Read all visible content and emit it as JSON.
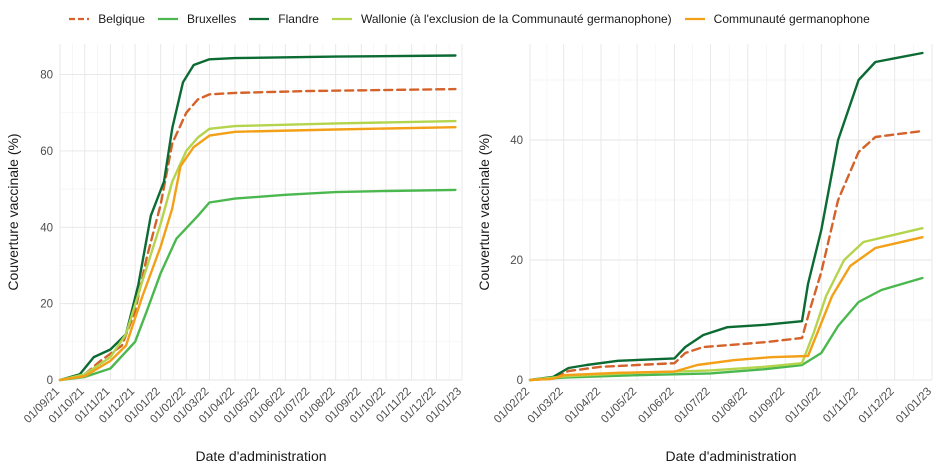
{
  "legend": [
    {
      "name": "Belgique",
      "color": "#d4622a",
      "dash": true
    },
    {
      "name": "Bruxelles",
      "color": "#4bb84f",
      "dash": false
    },
    {
      "name": "Flandre",
      "color": "#0b6b33",
      "dash": false
    },
    {
      "name": "Wallonie (à l'exclusion de la Communauté germanophone)",
      "color": "#b4d44c",
      "dash": false
    },
    {
      "name": "Communauté germanophone",
      "color": "#f3a018",
      "dash": false
    }
  ],
  "chart_data": [
    {
      "type": "line",
      "xlabel": "Date d'administration",
      "ylabel": "Couverture vaccinale (%)",
      "xlim": [
        "2021-09-01",
        "2023-01-01"
      ],
      "ylim": [
        0,
        88
      ],
      "grid": true,
      "legend_position": "top",
      "x_ticks": [
        "01/09/21",
        "01/10/21",
        "01/11/21",
        "01/12/21",
        "01/01/22",
        "01/02/22",
        "01/03/22",
        "01/04/22",
        "01/05/22",
        "01/06/22",
        "01/07/22",
        "01/08/22",
        "01/09/22",
        "01/10/22",
        "01/11/22",
        "01/12/22",
        "01/01/23"
      ],
      "y_ticks": [
        0,
        20,
        40,
        60,
        80
      ],
      "series": [
        {
          "name": "Belgique",
          "color": "#d4622a",
          "dash": true,
          "points": [
            [
              "2021-09-01",
              0
            ],
            [
              "2021-10-01",
              1.5
            ],
            [
              "2021-10-20",
              5
            ],
            [
              "2021-11-15",
              9
            ],
            [
              "2021-12-01",
              18
            ],
            [
              "2021-12-15",
              32
            ],
            [
              "2022-01-01",
              46
            ],
            [
              "2022-01-15",
              62
            ],
            [
              "2022-02-01",
              70
            ],
            [
              "2022-02-15",
              73.5
            ],
            [
              "2022-03-01",
              74.8
            ],
            [
              "2022-04-01",
              75.2
            ],
            [
              "2022-07-01",
              75.7
            ],
            [
              "2022-12-24",
              76.2
            ]
          ]
        },
        {
          "name": "Bruxelles",
          "color": "#4bb84f",
          "dash": false,
          "points": [
            [
              "2021-09-01",
              0
            ],
            [
              "2021-10-01",
              0.8
            ],
            [
              "2021-11-01",
              3
            ],
            [
              "2021-12-01",
              10
            ],
            [
              "2021-12-15",
              18
            ],
            [
              "2022-01-01",
              28
            ],
            [
              "2022-01-20",
              37
            ],
            [
              "2022-02-15",
              43
            ],
            [
              "2022-03-01",
              46.5
            ],
            [
              "2022-04-01",
              47.5
            ],
            [
              "2022-06-01",
              48.5
            ],
            [
              "2022-08-01",
              49.2
            ],
            [
              "2022-10-01",
              49.5
            ],
            [
              "2022-12-24",
              49.8
            ]
          ]
        },
        {
          "name": "Flandre",
          "color": "#0b6b33",
          "dash": false,
          "points": [
            [
              "2021-09-01",
              0
            ],
            [
              "2021-09-25",
              1.5
            ],
            [
              "2021-10-12",
              6
            ],
            [
              "2021-11-01",
              8
            ],
            [
              "2021-11-20",
              12
            ],
            [
              "2021-12-05",
              25
            ],
            [
              "2021-12-20",
              43
            ],
            [
              "2022-01-05",
              52
            ],
            [
              "2022-01-15",
              66
            ],
            [
              "2022-01-28",
              78
            ],
            [
              "2022-02-10",
              82.5
            ],
            [
              "2022-03-01",
              84
            ],
            [
              "2022-04-01",
              84.3
            ],
            [
              "2022-08-01",
              84.7
            ],
            [
              "2022-12-24",
              85
            ]
          ]
        },
        {
          "name": "Wallonie (à l'exclusion de la Communauté germanophone)",
          "color": "#b4d44c",
          "dash": false,
          "points": [
            [
              "2021-09-01",
              0
            ],
            [
              "2021-10-01",
              1.5
            ],
            [
              "2021-11-01",
              6
            ],
            [
              "2021-11-20",
              12
            ],
            [
              "2021-12-10",
              26
            ],
            [
              "2022-01-01",
              41
            ],
            [
              "2022-01-15",
              52
            ],
            [
              "2022-02-01",
              60
            ],
            [
              "2022-02-15",
              63.5
            ],
            [
              "2022-03-01",
              65.8
            ],
            [
              "2022-04-01",
              66.5
            ],
            [
              "2022-08-01",
              67.2
            ],
            [
              "2022-12-24",
              67.8
            ]
          ]
        },
        {
          "name": "Communauté germanophone",
          "color": "#f3a018",
          "dash": false,
          "points": [
            [
              "2021-09-01",
              0
            ],
            [
              "2021-10-01",
              1
            ],
            [
              "2021-11-01",
              5
            ],
            [
              "2021-11-20",
              9
            ],
            [
              "2021-12-10",
              22
            ],
            [
              "2022-01-01",
              35
            ],
            [
              "2022-01-15",
              45
            ],
            [
              "2022-01-25",
              56
            ],
            [
              "2022-02-10",
              61
            ],
            [
              "2022-03-01",
              64
            ],
            [
              "2022-04-01",
              65
            ],
            [
              "2022-08-01",
              65.6
            ],
            [
              "2022-12-24",
              66.2
            ]
          ]
        }
      ]
    },
    {
      "type": "line",
      "xlabel": "Date d'administration",
      "ylabel": "Couverture vaccinale (%)",
      "xlim": [
        "2022-02-01",
        "2023-01-01"
      ],
      "ylim": [
        0,
        56
      ],
      "grid": true,
      "legend_position": "top",
      "x_ticks": [
        "01/02/22",
        "01/03/22",
        "01/04/22",
        "01/05/22",
        "01/06/22",
        "01/07/22",
        "01/08/22",
        "01/09/22",
        "01/10/22",
        "01/11/22",
        "01/12/22",
        "01/01/23"
      ],
      "y_ticks": [
        0,
        20,
        40
      ],
      "series": [
        {
          "name": "Belgique",
          "color": "#d4622a",
          "dash": true,
          "points": [
            [
              "2022-02-01",
              0
            ],
            [
              "2022-02-20",
              0.2
            ],
            [
              "2022-03-05",
              1.5
            ],
            [
              "2022-04-01",
              2.2
            ],
            [
              "2022-05-01",
              2.5
            ],
            [
              "2022-06-01",
              2.8
            ],
            [
              "2022-06-10",
              4.5
            ],
            [
              "2022-06-25",
              5.5
            ],
            [
              "2022-07-15",
              5.8
            ],
            [
              "2022-08-15",
              6.3
            ],
            [
              "2022-09-15",
              7
            ],
            [
              "2022-09-22",
              12
            ],
            [
              "2022-10-01",
              18
            ],
            [
              "2022-10-15",
              30
            ],
            [
              "2022-11-01",
              38
            ],
            [
              "2022-11-15",
              40.5
            ],
            [
              "2022-12-24",
              41.5
            ]
          ]
        },
        {
          "name": "Bruxelles",
          "color": "#4bb84f",
          "dash": false,
          "points": [
            [
              "2022-02-01",
              0
            ],
            [
              "2022-03-01",
              0.4
            ],
            [
              "2022-05-01",
              0.8
            ],
            [
              "2022-07-01",
              1.1
            ],
            [
              "2022-08-15",
              1.8
            ],
            [
              "2022-09-15",
              2.5
            ],
            [
              "2022-10-01",
              4.5
            ],
            [
              "2022-10-15",
              9
            ],
            [
              "2022-11-01",
              13
            ],
            [
              "2022-11-20",
              15
            ],
            [
              "2022-12-24",
              17
            ]
          ]
        },
        {
          "name": "Flandre",
          "color": "#0b6b33",
          "dash": false,
          "points": [
            [
              "2022-02-01",
              0
            ],
            [
              "2022-02-20",
              0.5
            ],
            [
              "2022-03-05",
              2
            ],
            [
              "2022-03-20",
              2.5
            ],
            [
              "2022-04-15",
              3.2
            ],
            [
              "2022-06-01",
              3.6
            ],
            [
              "2022-06-10",
              5.5
            ],
            [
              "2022-06-25",
              7.5
            ],
            [
              "2022-07-15",
              8.8
            ],
            [
              "2022-08-15",
              9.2
            ],
            [
              "2022-09-15",
              9.8
            ],
            [
              "2022-09-20",
              16
            ],
            [
              "2022-10-01",
              25
            ],
            [
              "2022-10-15",
              40
            ],
            [
              "2022-11-01",
              50
            ],
            [
              "2022-11-15",
              53
            ],
            [
              "2022-12-24",
              54.5
            ]
          ]
        },
        {
          "name": "Wallonie (à l'exclusion de la Communauté germanophone)",
          "color": "#b4d44c",
          "dash": false,
          "points": [
            [
              "2022-02-01",
              0
            ],
            [
              "2022-03-01",
              0.6
            ],
            [
              "2022-05-01",
              1.2
            ],
            [
              "2022-07-01",
              1.6
            ],
            [
              "2022-08-15",
              2.2
            ],
            [
              "2022-09-15",
              2.8
            ],
            [
              "2022-09-25",
              8
            ],
            [
              "2022-10-05",
              14
            ],
            [
              "2022-10-20",
              20
            ],
            [
              "2022-11-05",
              23
            ],
            [
              "2022-12-24",
              25.3
            ]
          ]
        },
        {
          "name": "Communauté germanophone",
          "color": "#f3a018",
          "dash": false,
          "points": [
            [
              "2022-02-01",
              0
            ],
            [
              "2022-02-20",
              0.2
            ],
            [
              "2022-03-01",
              0.8
            ],
            [
              "2022-04-15",
              1.2
            ],
            [
              "2022-06-01",
              1.4
            ],
            [
              "2022-06-20",
              2.5
            ],
            [
              "2022-07-20",
              3.3
            ],
            [
              "2022-08-20",
              3.8
            ],
            [
              "2022-09-20",
              4
            ],
            [
              "2022-09-28",
              8
            ],
            [
              "2022-10-10",
              14
            ],
            [
              "2022-10-25",
              19
            ],
            [
              "2022-11-15",
              22
            ],
            [
              "2022-12-24",
              23.8
            ]
          ]
        }
      ]
    }
  ]
}
